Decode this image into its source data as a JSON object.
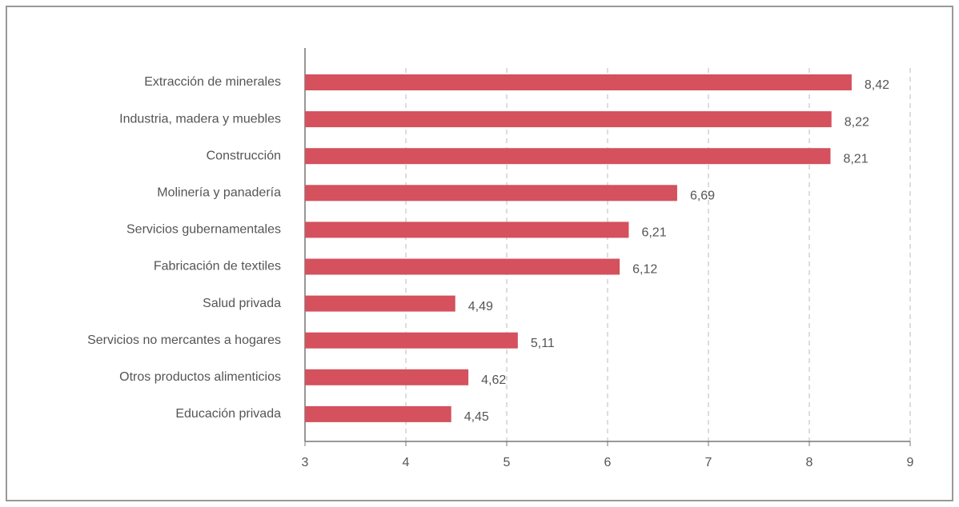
{
  "chart_data": {
    "type": "bar",
    "orientation": "horizontal",
    "categories": [
      "Extracción de minerales",
      "Industria, madera y muebles",
      "Construcción",
      "Molinería y panadería",
      "Servicios gubernamentales",
      "Fabricación de textiles",
      "Salud privada",
      "Servicios no mercantes a hogares",
      "Otros productos alimenticios",
      "Educación privada"
    ],
    "values": [
      8.42,
      8.22,
      8.21,
      6.69,
      6.21,
      6.12,
      4.49,
      5.11,
      4.62,
      4.45
    ],
    "value_labels": [
      "8,42",
      "8,22",
      "8,21",
      "6,69",
      "6,21",
      "6,12",
      "4,49",
      "5,11",
      "4,62",
      "4,45"
    ],
    "color": "#d4515d",
    "xlim": [
      3,
      9
    ],
    "xticks": [
      3,
      4,
      5,
      6,
      7,
      8,
      9
    ],
    "grid": true
  }
}
